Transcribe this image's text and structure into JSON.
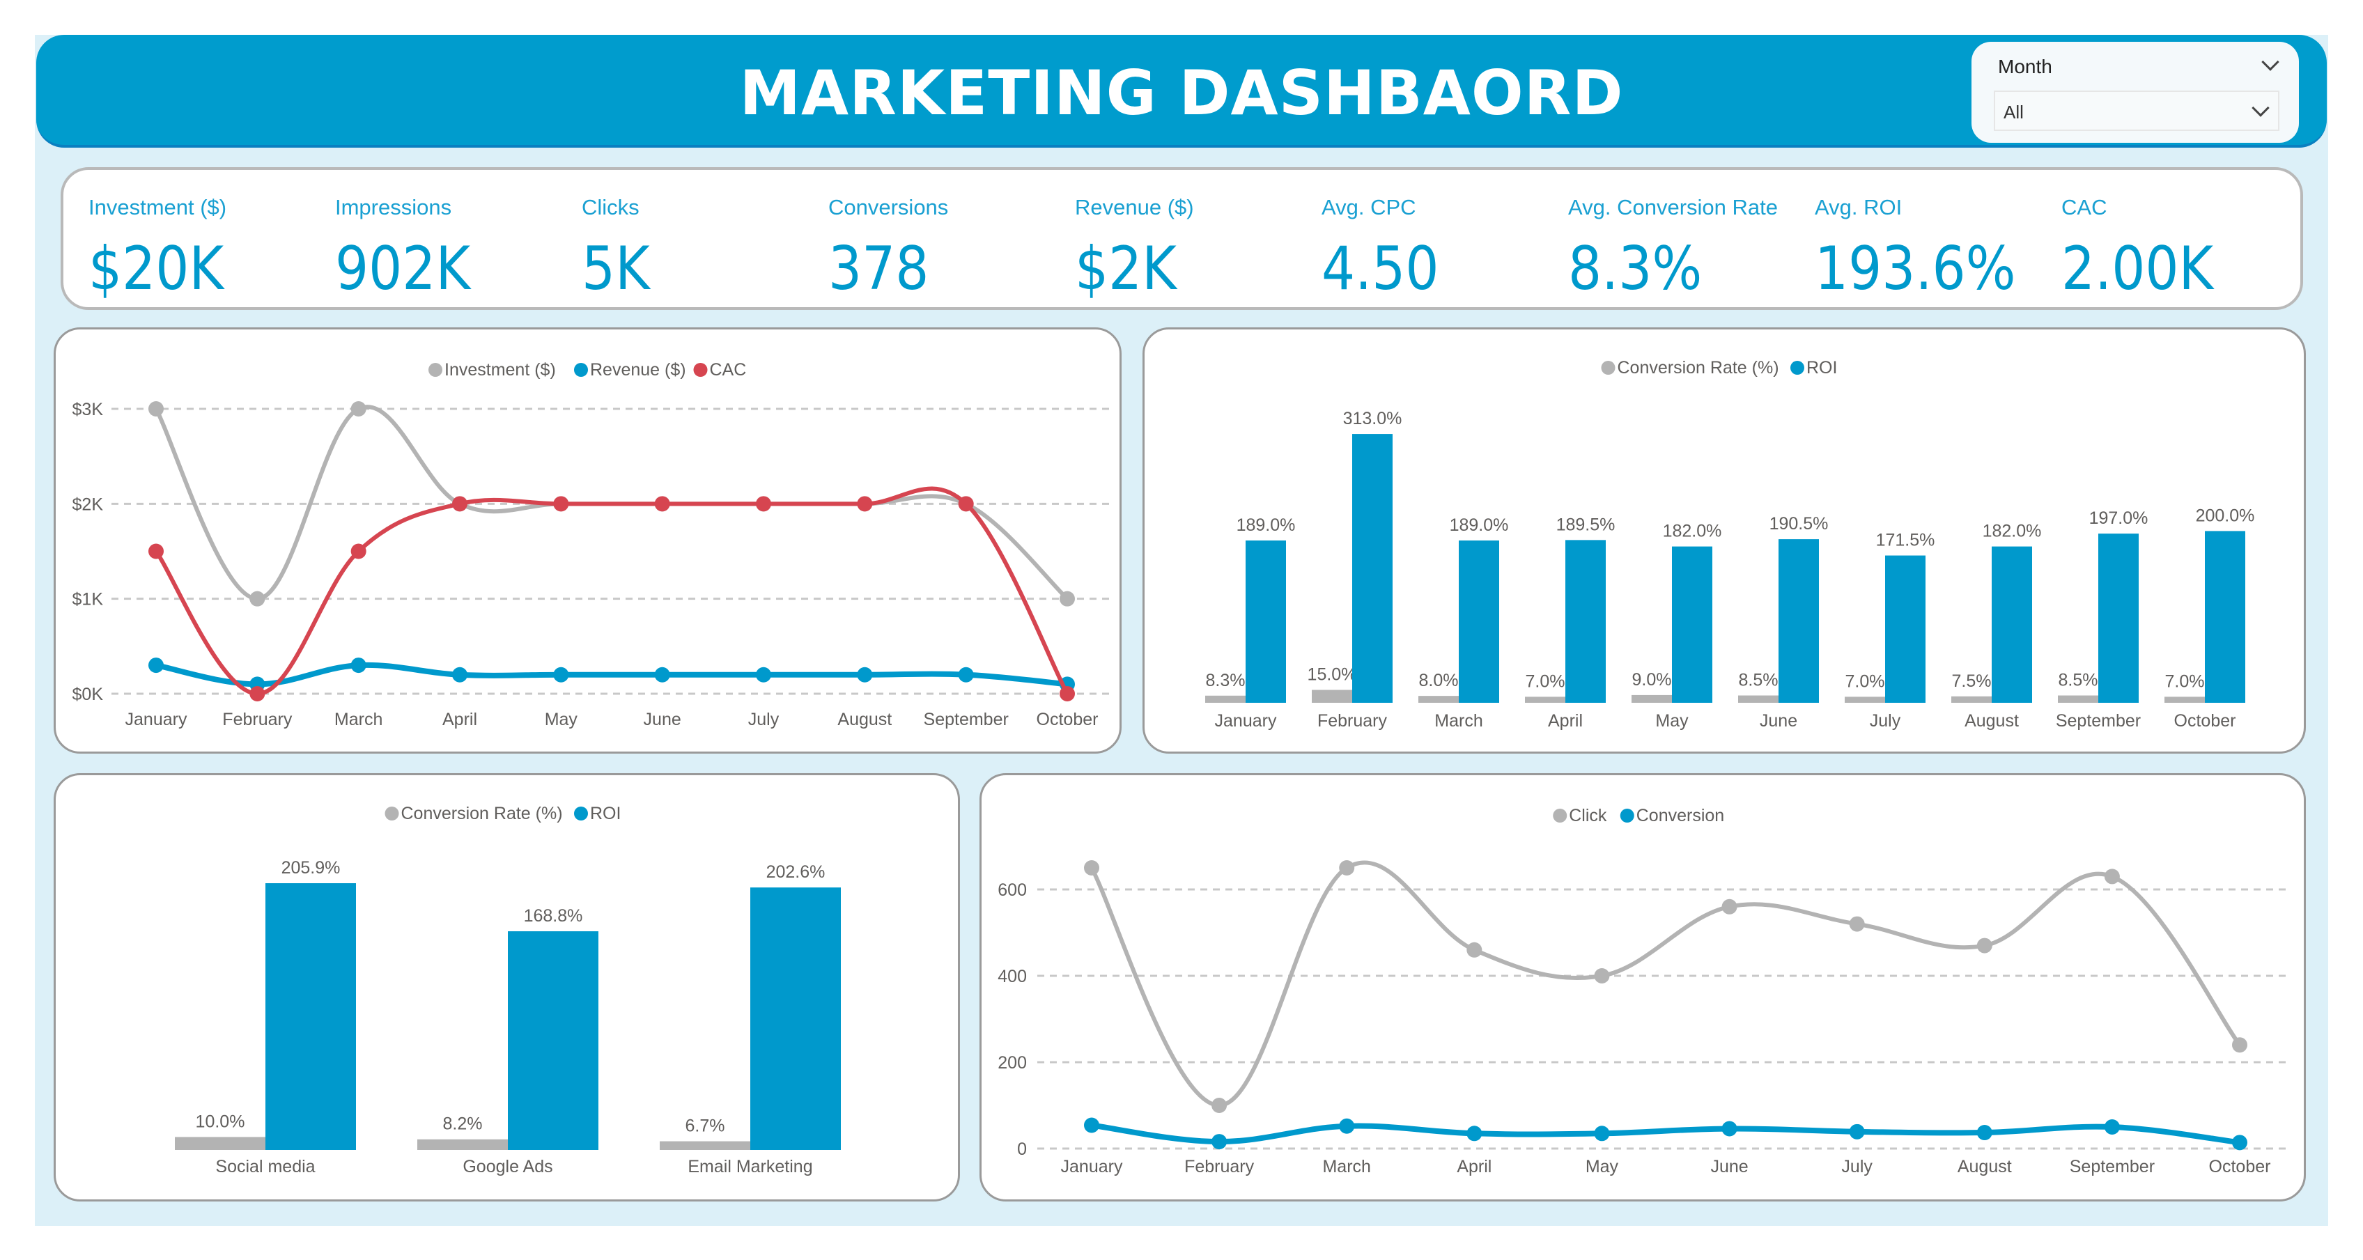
{
  "header": {
    "title": "MARKETING DASHBAORD"
  },
  "slicer": {
    "label": "Month",
    "value": "All"
  },
  "kpis": [
    {
      "label": "Investment ($)",
      "value": "$20K"
    },
    {
      "label": "Impressions",
      "value": "902K"
    },
    {
      "label": "Clicks",
      "value": "5K"
    },
    {
      "label": "Conversions",
      "value": "378"
    },
    {
      "label": "Revenue ($)",
      "value": "$2K"
    },
    {
      "label": "Avg. CPC",
      "value": "4.50"
    },
    {
      "label": "Avg. Conversion Rate",
      "value": "8.3%"
    },
    {
      "label": "Avg. ROI",
      "value": "193.6%"
    },
    {
      "label": "CAC",
      "value": "2.00K"
    }
  ],
  "colors": {
    "brand": "#009ccd",
    "gray": "#b3b3b3",
    "blue": "#0099cc",
    "red": "#d64550"
  },
  "chart_data": [
    {
      "type": "line",
      "categories": [
        "January",
        "February",
        "March",
        "April",
        "May",
        "June",
        "July",
        "August",
        "September",
        "October"
      ],
      "series": [
        {
          "name": "Investment ($)",
          "color": "#b3b3b3",
          "values": [
            3000,
            1000,
            3000,
            2000,
            2000,
            2000,
            2000,
            2000,
            2000,
            1000
          ]
        },
        {
          "name": "Revenue ($)",
          "color": "#0099cc",
          "values": [
            300,
            100,
            300,
            200,
            200,
            200,
            200,
            200,
            200,
            100
          ]
        },
        {
          "name": "CAC",
          "color": "#d64550",
          "values": [
            1500,
            0,
            1500,
            2000,
            2000,
            2000,
            2000,
            2000,
            2000,
            0
          ]
        }
      ],
      "yticks": [
        {
          "v": 0,
          "label": "$0K"
        },
        {
          "v": 1000,
          "label": "$1K"
        },
        {
          "v": 2000,
          "label": "$2K"
        },
        {
          "v": 3000,
          "label": "$3K"
        }
      ],
      "ylim": [
        0,
        3000
      ],
      "grid": true,
      "legend": "top"
    },
    {
      "type": "bar",
      "categories": [
        "January",
        "February",
        "March",
        "April",
        "May",
        "June",
        "July",
        "August",
        "September",
        "October"
      ],
      "series": [
        {
          "name": "Conversion Rate (%)",
          "color": "#b3b3b3",
          "values": [
            8.3,
            15.0,
            8.0,
            7.0,
            9.0,
            8.5,
            7.0,
            7.5,
            8.5,
            7.0
          ],
          "labels": [
            "8.3%",
            "15.0%",
            "8.0%",
            "7.0%",
            "9.0%",
            "8.5%",
            "7.0%",
            "7.5%",
            "8.5%",
            "7.0%"
          ]
        },
        {
          "name": "ROI",
          "color": "#0099cc",
          "values": [
            189.0,
            313.0,
            189.0,
            189.5,
            182.0,
            190.5,
            171.5,
            182.0,
            197.0,
            200.0
          ],
          "labels": [
            "189.0%",
            "313.0%",
            "189.0%",
            "189.5%",
            "182.0%",
            "190.5%",
            "171.5%",
            "182.0%",
            "197.0%",
            "200.0%"
          ]
        }
      ],
      "legend": "top"
    },
    {
      "type": "bar",
      "categories": [
        "Social media",
        "Google Ads",
        "Email Marketing"
      ],
      "series": [
        {
          "name": "Conversion Rate (%)",
          "color": "#b3b3b3",
          "values": [
            10.0,
            8.2,
            6.7
          ],
          "labels": [
            "10.0%",
            "8.2%",
            "6.7%"
          ]
        },
        {
          "name": "ROI",
          "color": "#0099cc",
          "values": [
            205.9,
            168.8,
            202.6
          ],
          "labels": [
            "205.9%",
            "168.8%",
            "202.6%"
          ]
        }
      ],
      "legend": "top"
    },
    {
      "type": "line",
      "categories": [
        "January",
        "February",
        "March",
        "April",
        "May",
        "June",
        "July",
        "August",
        "September",
        "October"
      ],
      "series": [
        {
          "name": "Click",
          "color": "#b3b3b3",
          "values": [
            650,
            100,
            650,
            460,
            400,
            560,
            520,
            470,
            630,
            240
          ]
        },
        {
          "name": "Conversion",
          "color": "#0099cc",
          "values": [
            54,
            16,
            52,
            35,
            35,
            46,
            39,
            37,
            50,
            14
          ]
        }
      ],
      "yticks": [
        {
          "v": 0,
          "label": "0"
        },
        {
          "v": 200,
          "label": "200"
        },
        {
          "v": 400,
          "label": "400"
        },
        {
          "v": 600,
          "label": "600"
        }
      ],
      "ylim": [
        0,
        600
      ],
      "grid": true,
      "legend": "top"
    }
  ]
}
